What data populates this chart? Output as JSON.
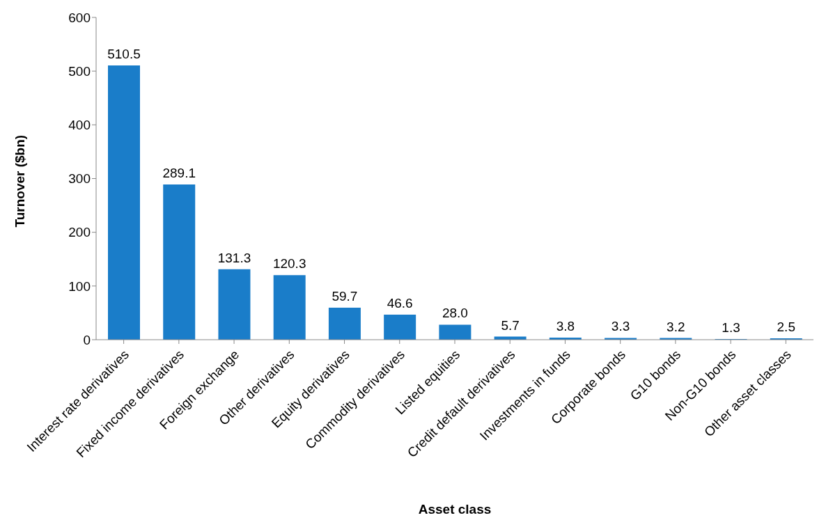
{
  "chart_data": {
    "type": "bar",
    "xlabel": "Asset class",
    "ylabel": "Turnover ($bn)",
    "categories": [
      "Interest rate derivatives",
      "Fixed income derivatives",
      "Foreign exchange",
      "Other derivatives",
      "Equity derivatives",
      "Commodity derivatives",
      "Listed equities",
      "Credit default derivatives",
      "Investments in funds",
      "Corporate bonds",
      "G10 bonds",
      "Non-G10 bonds",
      "Other asset classes"
    ],
    "values": [
      510.5,
      289.1,
      131.3,
      120.3,
      59.7,
      46.6,
      28.0,
      5.7,
      3.8,
      3.3,
      3.2,
      1.3,
      2.5
    ],
    "value_labels": [
      "510.5",
      "289.1",
      "131.3",
      "120.3",
      "59.7",
      "46.6",
      "28.0",
      "5.7",
      "3.8",
      "3.3",
      "3.2",
      "1.3",
      "2.5"
    ],
    "color": "#1a7dc9",
    "ylim": [
      0,
      600
    ],
    "yticks": [
      0,
      100,
      200,
      300,
      400,
      500,
      600
    ],
    "grid": false,
    "legend": false
  }
}
